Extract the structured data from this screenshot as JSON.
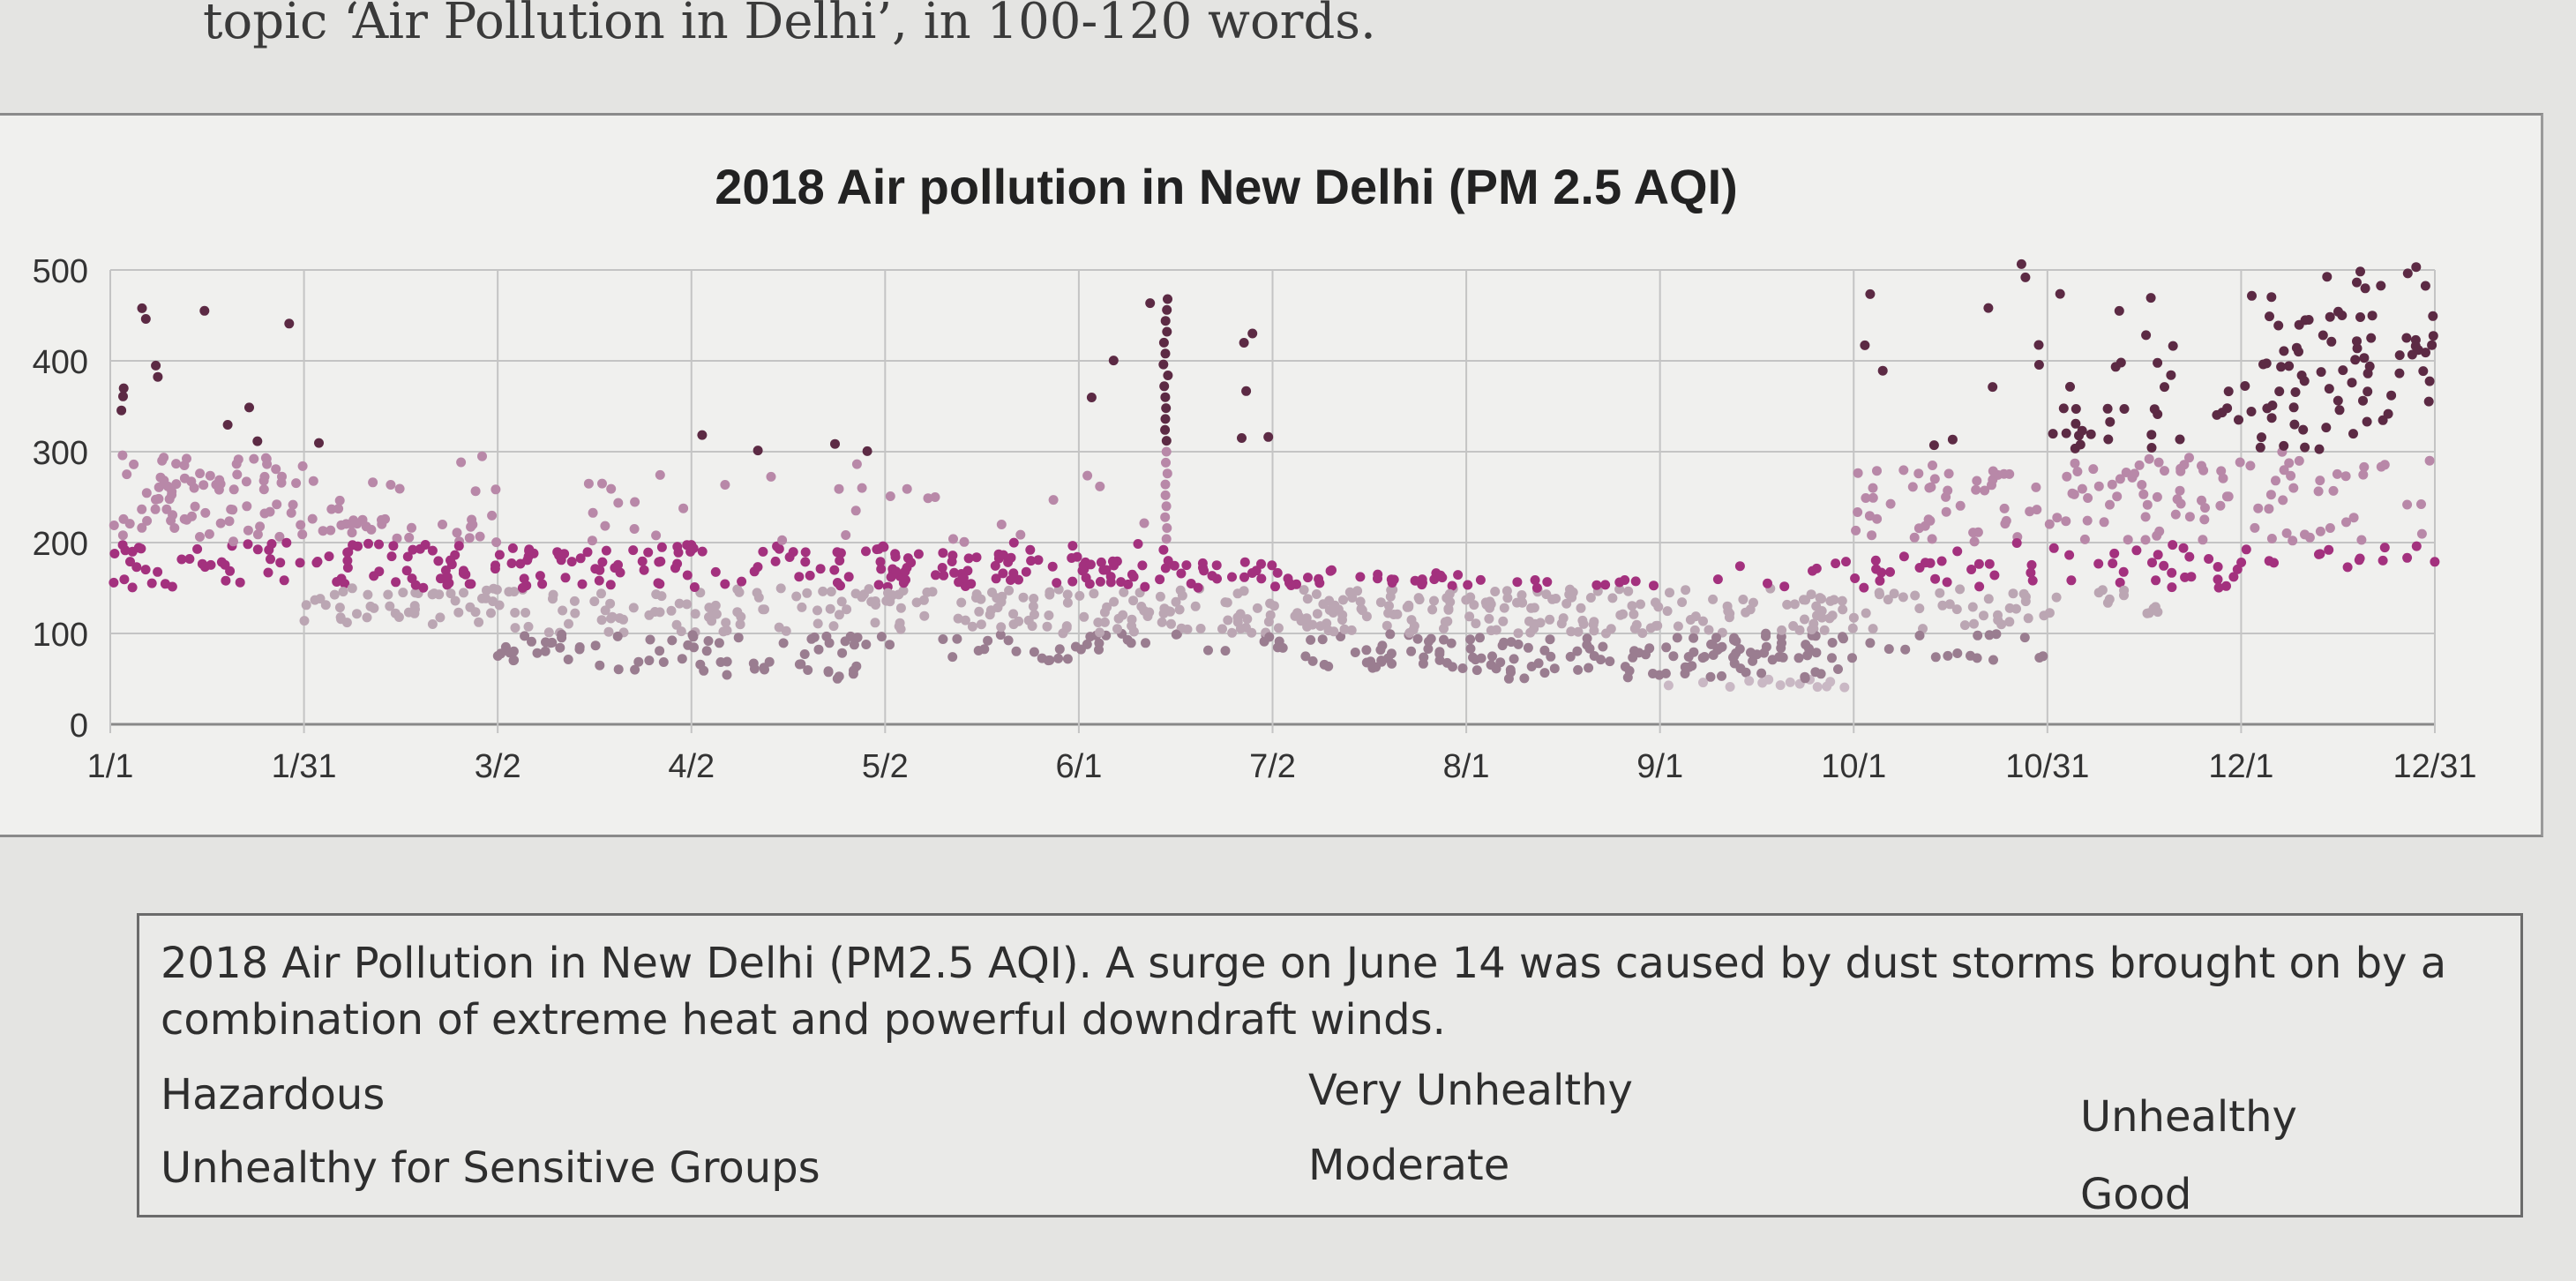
{
  "header": {
    "text": "topic ‘Air Pollution in Delhi’, in 100-120 words."
  },
  "chart_data": {
    "type": "scatter",
    "title": "2018 Air pollution in New Delhi (PM 2.5 AQI)",
    "xlabel": "",
    "ylabel": "",
    "ylim": [
      0,
      500
    ],
    "yticks": [
      0,
      100,
      200,
      300,
      400,
      500
    ],
    "xticks": [
      "1/1",
      "1/31",
      "3/2",
      "4/2",
      "5/2",
      "6/1",
      "7/2",
      "8/1",
      "9/1",
      "10/1",
      "10/31",
      "12/1",
      "12/31"
    ],
    "grid": true,
    "legend": "none",
    "colors": {
      "hazardous": "#5c2a44",
      "very_unhealthy": "#b888a8",
      "unhealthy": "#a3317e",
      "unhealthy_sensitive": "#bba6b3",
      "moderate": "#9a7d90",
      "good": "#c9b8c4"
    },
    "series_by_month": [
      {
        "month": "Jan",
        "daily_band_low": 150,
        "daily_band_high": 300,
        "peak": 460
      },
      {
        "month": "Feb",
        "daily_band_low": 110,
        "daily_band_high": 230,
        "peak": 320
      },
      {
        "month": "Mar",
        "daily_band_low": 60,
        "daily_band_high": 200,
        "peak": 280
      },
      {
        "month": "Apr",
        "daily_band_low": 50,
        "daily_band_high": 200,
        "peak": 320
      },
      {
        "month": "May",
        "daily_band_low": 70,
        "daily_band_high": 190,
        "peak": 260
      },
      {
        "month": "Jun",
        "daily_band_low": 80,
        "daily_band_high": 180,
        "peak": 470
      },
      {
        "month": "Jul",
        "daily_band_low": 60,
        "daily_band_high": 160,
        "peak": 170
      },
      {
        "month": "Aug",
        "daily_band_low": 50,
        "daily_band_high": 150,
        "peak": 160
      },
      {
        "month": "Sep",
        "daily_band_low": 40,
        "daily_band_high": 140,
        "peak": 180
      },
      {
        "month": "Oct",
        "daily_band_low": 70,
        "daily_band_high": 280,
        "peak": 510
      },
      {
        "month": "Nov",
        "daily_band_low": 120,
        "daily_band_high": 350,
        "peak": 480
      },
      {
        "month": "Dec",
        "daily_band_low": 170,
        "daily_band_high": 450,
        "peak": 505
      }
    ],
    "annotations": [
      "June 14 dust storm surge (~470)"
    ]
  },
  "caption": {
    "text": "2018 Air Pollution in New Delhi (PM2.5 AQI). A surge on June 14 was caused by dust storms brought on by a combination of extreme heat and powerful downdraft winds.",
    "categories": {
      "hazardous": "Hazardous",
      "very_unhealthy": "Very Unhealthy",
      "unhealthy": "Unhealthy",
      "unhealthy_sensitive": "Unhealthy for Sensitive Groups",
      "moderate": "Moderate",
      "good": "Good"
    }
  }
}
